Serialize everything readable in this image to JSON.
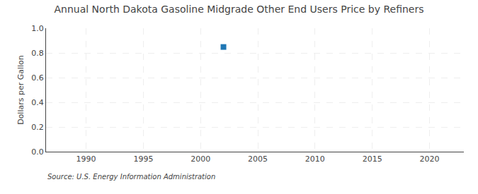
{
  "chart_data": {
    "type": "scatter",
    "title": "Annual North Dakota Gasoline Midgrade Other End Users Price by Refiners",
    "ylabel": "Dollars per Gallon",
    "source": "Source: U.S. Energy Information Administration",
    "x": [
      2002
    ],
    "values": [
      0.848
    ],
    "marker": "square",
    "xlim": [
      1986.5,
      2023
    ],
    "xticks": [
      1990,
      1995,
      2000,
      2005,
      2010,
      2015,
      2020
    ],
    "ylim": [
      0,
      1
    ],
    "yticks": [
      {
        "value": 0,
        "label": "0.0"
      },
      0.2,
      0.4,
      0.6,
      0.8,
      {
        "value": 1,
        "label": "1.0"
      }
    ],
    "grid": true
  }
}
